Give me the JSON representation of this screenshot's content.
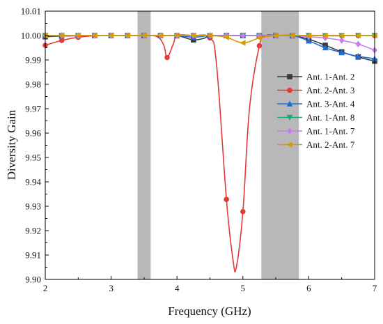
{
  "chart_data": {
    "type": "line",
    "title": "",
    "xlabel": "Frequency (GHz)",
    "ylabel": "Diversity Gain",
    "xlim": [
      2,
      7
    ],
    "ylim": [
      9.9,
      10.01
    ],
    "xticks": [
      "2",
      "3",
      "4",
      "5",
      "6",
      "7"
    ],
    "yticks": [
      "9.90",
      "9.91",
      "9.92",
      "9.93",
      "9.94",
      "9.95",
      "9.96",
      "9.97",
      "9.98",
      "9.99",
      "10.00",
      "10.01"
    ],
    "grid": false,
    "legend_position": "right",
    "shaded_bands": [
      {
        "x": [
          3.4,
          3.6
        ],
        "color": "#b8b8b8"
      },
      {
        "x": [
          5.28,
          5.85
        ],
        "color": "#b8b8b8"
      }
    ],
    "series": [
      {
        "name": "Ant. 1-Ant. 2",
        "color": "#3a3a3a",
        "marker": "square",
        "x": [
          2,
          2.25,
          2.5,
          2.75,
          3,
          3.25,
          3.5,
          3.75,
          4,
          4.1,
          4.25,
          4.4,
          4.5,
          4.75,
          5,
          5.25,
          5.5,
          5.75,
          6,
          6.25,
          6.5,
          6.75,
          7
        ],
        "y": [
          9.9995,
          9.9998,
          9.9999,
          10.0,
          10.0,
          10.0,
          10.0,
          10.0,
          9.9999,
          9.9993,
          9.9982,
          9.9988,
          9.9998,
          10.0,
          10.0,
          10.0,
          10.0,
          9.9999,
          9.9985,
          9.996,
          9.9933,
          9.9912,
          9.9895
        ]
      },
      {
        "name": "Ant. 2-Ant. 3",
        "color": "#e53935",
        "marker": "circle",
        "x": [
          2,
          2.25,
          2.5,
          2.75,
          3,
          3.25,
          3.5,
          3.7,
          3.8,
          3.85,
          3.95,
          4.0,
          4.25,
          4.5,
          4.6,
          4.75,
          4.85,
          4.9,
          5.0,
          5.1,
          5.25,
          5.35,
          5.5,
          5.75,
          6,
          6.25,
          6.5,
          6.75,
          7
        ],
        "y": [
          9.996,
          9.998,
          9.9993,
          9.9999,
          10.0,
          10.0,
          10.0,
          9.9995,
          9.996,
          9.991,
          9.997,
          10.0,
          10.0,
          9.999,
          9.988,
          9.9328,
          9.908,
          9.905,
          9.9278,
          9.97,
          9.9958,
          10.0,
          10.0,
          10.0,
          10.0,
          10.0,
          10.0,
          10.0,
          10.0
        ]
      },
      {
        "name": "Ant. 3-Ant. 4",
        "color": "#1e6fd9",
        "marker": "triangle-up",
        "x": [
          2,
          2.25,
          2.5,
          2.75,
          3,
          3.25,
          3.5,
          3.75,
          4,
          4.25,
          4.5,
          4.75,
          5,
          5.25,
          5.5,
          5.75,
          6,
          6.25,
          6.5,
          6.75,
          7
        ],
        "y": [
          10.0,
          10.0,
          10.0,
          10.0,
          10.0,
          10.0,
          10.0,
          10.0,
          10.0,
          9.9993,
          10.0,
          10.0,
          10.0,
          10.0,
          10.0,
          10.0,
          9.9978,
          9.995,
          9.993,
          9.9915,
          9.9905
        ]
      },
      {
        "name": "Ant. 1-Ant. 8",
        "color": "#19a974",
        "marker": "triangle-down",
        "x": [
          2,
          2.25,
          2.5,
          2.75,
          3,
          3.25,
          3.5,
          3.75,
          4,
          4.25,
          4.5,
          4.75,
          5,
          5.25,
          5.5,
          5.75,
          6,
          6.25,
          6.5,
          6.75,
          7
        ],
        "y": [
          10.0,
          10.0,
          10.0,
          10.0,
          10.0,
          10.0,
          10.0,
          10.0,
          10.0,
          10.0,
          10.0,
          10.0,
          10.0,
          10.0,
          10.0,
          10.0,
          10.0,
          9.9999,
          9.9999,
          10.0,
          10.0
        ]
      },
      {
        "name": "Ant. 1-Ant. 7",
        "color": "#c77dea",
        "marker": "diamond",
        "x": [
          2,
          2.25,
          2.5,
          2.75,
          3,
          3.25,
          3.5,
          3.75,
          4,
          4.25,
          4.5,
          4.75,
          5,
          5.25,
          5.5,
          5.75,
          6,
          6.25,
          6.5,
          6.75,
          7
        ],
        "y": [
          10.0,
          10.0,
          10.0,
          10.0,
          10.0,
          10.0,
          10.0,
          10.0,
          10.0,
          10.0,
          10.0,
          10.0,
          10.0,
          10.0,
          10.0,
          10.0,
          9.9995,
          9.999,
          9.998,
          9.9965,
          9.994
        ]
      },
      {
        "name": "Ant. 2-Ant. 7",
        "color": "#d99a00",
        "marker": "triangle-left",
        "x": [
          2,
          2.25,
          2.5,
          2.75,
          3,
          3.25,
          3.5,
          3.75,
          4,
          4.25,
          4.5,
          4.75,
          5,
          5.25,
          5.5,
          5.75,
          6,
          6.25,
          6.5,
          6.75,
          7
        ],
        "y": [
          10.0,
          10.0,
          10.0,
          10.0,
          10.0,
          10.0,
          10.0,
          10.0,
          10.0,
          10.0,
          10.0,
          9.9993,
          9.997,
          9.999,
          10.0,
          10.0,
          10.0,
          10.0,
          10.0,
          10.0,
          10.0
        ]
      }
    ]
  }
}
